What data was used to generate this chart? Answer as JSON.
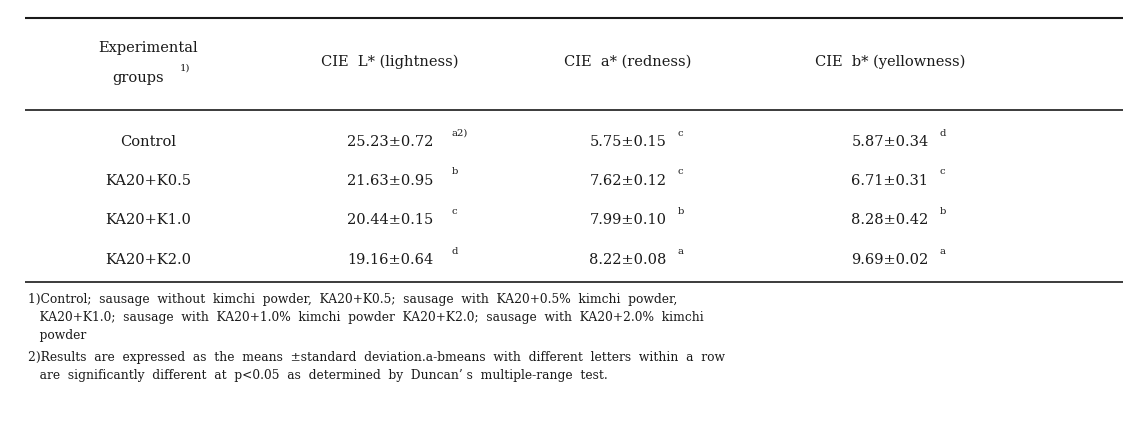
{
  "bg_color": "#ffffff",
  "text_color": "#1a1a1a",
  "font_size": 10.5,
  "small_font_size": 7.2,
  "footnote_font_size": 8.8,
  "header_col0_line1": "Experimental",
  "header_col0_line2": "groups",
  "header_col0_sup": "1)",
  "header_col1": "CIE  L* (lightness)",
  "header_col2": "CIE  a* (redness)",
  "header_col3": "CIE  b* (yellowness)",
  "row_labels": [
    "Control",
    "KA20+K0.5",
    "KA20+K1.0",
    "KA20+K2.0"
  ],
  "cie_l_main": [
    "25.23±0.72",
    "21.63±0.95",
    "20.44±0.15",
    "19.16±0.64"
  ],
  "cie_l_sup": [
    "a2)",
    "b",
    "c",
    "d"
  ],
  "cie_a_main": [
    "5.75±0.15",
    "7.62±0.12",
    "7.99±0.10",
    "8.22±0.08"
  ],
  "cie_a_sup": [
    "c",
    "c",
    "b",
    "a"
  ],
  "cie_b_main": [
    "5.87±0.34",
    "6.71±0.31",
    "8.28±0.42",
    "9.69±0.02"
  ],
  "cie_b_sup": [
    "d",
    "c",
    "b",
    "a"
  ],
  "footnote1_line1": "1)Control;  sausage  without  kimchi  powder,  KA20+K0.5;  sausage  with  KA20+0.5%  kimchi  powder,",
  "footnote1_line2": "   KA20+K1.0;  sausage  with  KA20+1.0%  kimchi  powder  KA20+K2.0;  sausage  with  KA20+2.0%  kimchi",
  "footnote1_line3": "   powder",
  "footnote2_line1": "2)Results  are  expressed  as  the  means  ±standard  deviation.a-bmeans  with  different  letters  within  a  row",
  "footnote2_line2": "   are  significantly  different  at  p<0.05  as  determined  by  Duncan’ s  multiple-range  test."
}
